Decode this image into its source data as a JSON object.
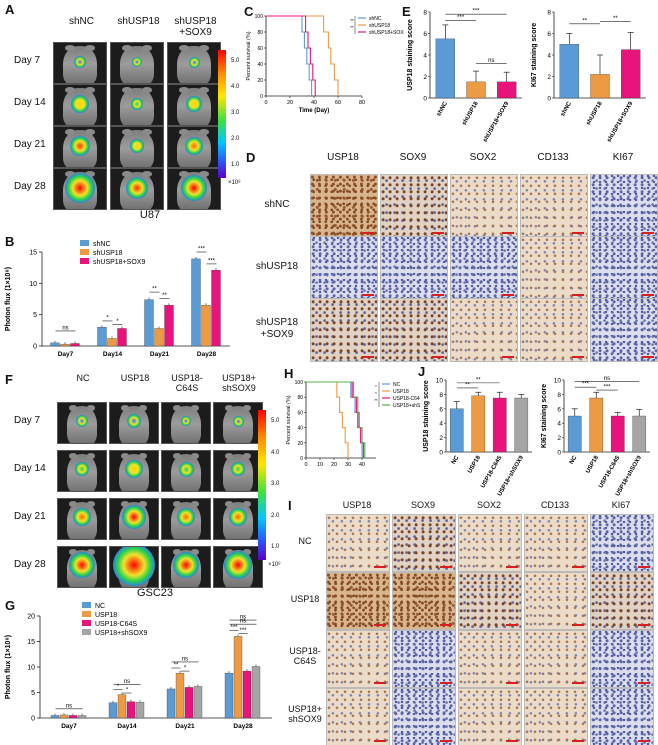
{
  "panel_letters": {
    "A": "A",
    "B": "B",
    "C": "C",
    "D": "D",
    "E": "E",
    "F": "F",
    "G": "G",
    "H": "H",
    "I": "I",
    "J": "J"
  },
  "panelA": {
    "columns": [
      "shNC",
      "shUSP18",
      "shUSP18\n+SOX9"
    ],
    "rows": [
      "Day 7",
      "Day 14",
      "Day 21",
      "Day 28"
    ],
    "cell_line": "U87",
    "colorbar_ticks": [
      "5.0",
      "4.0",
      "3.0",
      "2.0",
      "1.0"
    ],
    "colorbar_unit": "×10⁸"
  },
  "panelF": {
    "columns": [
      "NC",
      "USP18",
      "USP18-\nC64S",
      "USP18+\nshSOX9"
    ],
    "rows": [
      "Day 7",
      "Day 14",
      "Day 21",
      "Day 28"
    ],
    "cell_line": "GSC23",
    "colorbar_ticks": [
      "5.0",
      "4.0",
      "3.0",
      "2.0",
      "1.0"
    ],
    "colorbar_unit": "×10⁸"
  },
  "panelD": {
    "columns": [
      "USP18",
      "SOX9",
      "SOX2",
      "CD133",
      "KI67"
    ],
    "rows": [
      "shNC",
      "shUSP18",
      "shUSP18\n+SOX9"
    ]
  },
  "panelI": {
    "columns": [
      "USP18",
      "SOX9",
      "SOX2",
      "CD133",
      "KI67"
    ],
    "rows": [
      "NC",
      "USP18",
      "USP18-\nC64S",
      "USP18+\nshSOX9"
    ]
  },
  "colors": {
    "blue": "#5b9bd5",
    "orange": "#ed9a45",
    "magenta": "#e8147c",
    "gray": "#a5a5a5",
    "brown_tissue": "#b07a4a",
    "blue_tissue": "#6f78b3"
  },
  "chart_data": [
    {
      "id": "B",
      "type": "bar",
      "ylabel": "Photon flux (1×10⁸)",
      "categories": [
        "Day7",
        "Day14",
        "Day21",
        "Day28"
      ],
      "ylim": [
        0,
        15
      ],
      "yticks": [
        "0",
        "5",
        "10",
        "15"
      ],
      "series": [
        {
          "name": "shNC",
          "color": "#5b9bd5",
          "values": [
            0.5,
            3.0,
            7.4,
            13.9
          ]
        },
        {
          "name": "shUSP18",
          "color": "#ed9a45",
          "values": [
            0.3,
            1.2,
            2.8,
            6.5
          ]
        },
        {
          "name": "shUSP18+SOX9",
          "color": "#e8147c",
          "values": [
            0.4,
            2.8,
            6.5,
            12.1
          ]
        }
      ],
      "annotations": [
        "ns",
        "*",
        "*",
        "**",
        "**",
        "***",
        "***"
      ]
    },
    {
      "id": "G",
      "type": "bar",
      "ylabel": "Photon flux (1×10⁸)",
      "categories": [
        "Day7",
        "Day14",
        "Day21",
        "Day28"
      ],
      "ylim": [
        0,
        20
      ],
      "yticks": [
        "0",
        "5",
        "10",
        "15",
        "20"
      ],
      "series": [
        {
          "name": "NC",
          "color": "#5b9bd5",
          "values": [
            0.5,
            3.0,
            5.7,
            8.8
          ]
        },
        {
          "name": "USP18",
          "color": "#ed9a45",
          "values": [
            0.6,
            4.6,
            8.8,
            16.0
          ]
        },
        {
          "name": "USP18-C64S",
          "color": "#e8147c",
          "values": [
            0.5,
            3.2,
            6.0,
            9.2
          ]
        },
        {
          "name": "USP18+shSOX9",
          "color": "#a5a5a5",
          "values": [
            0.5,
            3.1,
            6.2,
            10.1
          ]
        }
      ],
      "annotations": [
        "ns",
        "ns",
        "*",
        "*",
        "ns",
        "**",
        "*",
        "ns",
        "ns",
        "***",
        "***"
      ]
    },
    {
      "id": "C",
      "type": "line",
      "xlabel": "Time (Day)",
      "ylabel": "Percent survival (%)",
      "xlim": [
        0,
        80
      ],
      "ylim": [
        0,
        100
      ],
      "xticks": [
        "0",
        "20",
        "40",
        "60",
        "80"
      ],
      "yticks": [
        "0",
        "20",
        "40",
        "60",
        "80",
        "100"
      ],
      "series": [
        {
          "name": "shNC",
          "color": "#5b9bd5",
          "steps": [
            [
              0,
              100
            ],
            [
              30,
              100
            ],
            [
              30,
              80
            ],
            [
              32,
              80
            ],
            [
              32,
              60
            ],
            [
              34,
              60
            ],
            [
              34,
              40
            ],
            [
              36,
              40
            ],
            [
              36,
              20
            ],
            [
              38,
              20
            ],
            [
              38,
              0
            ]
          ]
        },
        {
          "name": "shUSP18",
          "color": "#ed9a45",
          "steps": [
            [
              0,
              100
            ],
            [
              48,
              100
            ],
            [
              48,
              80
            ],
            [
              52,
              80
            ],
            [
              52,
              60
            ],
            [
              54,
              60
            ],
            [
              54,
              40
            ],
            [
              57,
              40
            ],
            [
              57,
              20
            ],
            [
              60,
              20
            ],
            [
              60,
              0
            ]
          ]
        },
        {
          "name": "shUSP18+SOX9",
          "color": "#e8147c",
          "steps": [
            [
              0,
              100
            ],
            [
              33,
              100
            ],
            [
              33,
              80
            ],
            [
              35,
              80
            ],
            [
              35,
              60
            ],
            [
              37,
              60
            ],
            [
              37,
              40
            ],
            [
              39,
              40
            ],
            [
              39,
              20
            ],
            [
              41,
              20
            ],
            [
              41,
              0
            ]
          ]
        }
      ],
      "annotations": [
        "**",
        "**"
      ]
    },
    {
      "id": "H",
      "type": "line",
      "ylabel": "Percent survival (%)",
      "xlim": [
        0,
        50
      ],
      "ylim": [
        0,
        100
      ],
      "xticks": [
        "0",
        "10",
        "20",
        "30",
        "40"
      ],
      "yticks": [
        "0",
        "20",
        "40",
        "60",
        "80",
        "100"
      ],
      "series": [
        {
          "name": "NC",
          "color": "#5b9bd5",
          "steps": [
            [
              0,
              100
            ],
            [
              32,
              100
            ],
            [
              32,
              80
            ],
            [
              35,
              80
            ],
            [
              35,
              60
            ],
            [
              38,
              60
            ],
            [
              38,
              40
            ],
            [
              40,
              40
            ],
            [
              40,
              0
            ]
          ]
        },
        {
          "name": "USP18",
          "color": "#ed9a45",
          "steps": [
            [
              0,
              100
            ],
            [
              22,
              100
            ],
            [
              22,
              80
            ],
            [
              24,
              80
            ],
            [
              24,
              60
            ],
            [
              26,
              60
            ],
            [
              26,
              40
            ],
            [
              28,
              40
            ],
            [
              28,
              20
            ],
            [
              30,
              20
            ],
            [
              30,
              0
            ]
          ]
        },
        {
          "name": "USP18-C64S",
          "color": "#e8147c",
          "steps": [
            [
              0,
              100
            ],
            [
              33,
              100
            ],
            [
              33,
              80
            ],
            [
              36,
              80
            ],
            [
              36,
              60
            ],
            [
              37,
              60
            ],
            [
              37,
              40
            ],
            [
              39,
              40
            ],
            [
              39,
              20
            ],
            [
              41,
              20
            ],
            [
              41,
              0
            ]
          ]
        },
        {
          "name": "USP18+shSOX9",
          "color": "#55b04a",
          "steps": [
            [
              0,
              100
            ],
            [
              34,
              100
            ],
            [
              34,
              80
            ],
            [
              37,
              80
            ],
            [
              37,
              60
            ],
            [
              38,
              60
            ],
            [
              38,
              40
            ],
            [
              40,
              40
            ],
            [
              40,
              20
            ],
            [
              42,
              20
            ],
            [
              42,
              0
            ]
          ]
        }
      ],
      "annotations": [
        "*",
        "*",
        "**"
      ]
    },
    {
      "id": "E1",
      "type": "bar",
      "ylabel": "USP18 staining score",
      "categories": [
        "shNC",
        "shUSP18",
        "shUSP18+SOX9"
      ],
      "ylim": [
        0,
        8
      ],
      "yticks": [
        "0",
        "2",
        "4",
        "6",
        "8"
      ],
      "values": [
        5.5,
        1.5,
        1.5
      ],
      "errors": [
        1.3,
        1.0,
        0.9
      ],
      "colors": [
        "#5b9bd5",
        "#ed9a45",
        "#e8147c"
      ],
      "annotations": [
        "***",
        "***",
        "ns"
      ]
    },
    {
      "id": "E2",
      "type": "bar",
      "ylabel": "KI67 staining score",
      "categories": [
        "shNC",
        "shUSP18",
        "shUSP18+SOX9"
      ],
      "ylim": [
        0,
        8
      ],
      "yticks": [
        "0",
        "2",
        "4",
        "6",
        "8"
      ],
      "values": [
        5.0,
        2.2,
        4.5
      ],
      "errors": [
        1.0,
        1.8,
        1.6
      ],
      "colors": [
        "#5b9bd5",
        "#ed9a45",
        "#e8147c"
      ],
      "annotations": [
        "**",
        "**"
      ]
    },
    {
      "id": "J1",
      "type": "bar",
      "ylabel": "USP18 staining score",
      "categories": [
        "NC",
        "USP18",
        "USP18-C64S",
        "USP18+shSOX9"
      ],
      "ylim": [
        0,
        10
      ],
      "yticks": [
        "0",
        "2",
        "4",
        "6",
        "8",
        "10"
      ],
      "values": [
        6.0,
        7.8,
        7.5,
        7.5
      ],
      "errors": [
        1.0,
        0.5,
        0.8,
        0.5
      ],
      "colors": [
        "#5b9bd5",
        "#ed9a45",
        "#e8147c",
        "#a5a5a5"
      ],
      "annotations": [
        "**",
        "**"
      ]
    },
    {
      "id": "J2",
      "type": "bar",
      "ylabel": "KI67 staining score",
      "categories": [
        "NC",
        "USP18",
        "USP18-C64S",
        "USP18+shSOX9"
      ],
      "ylim": [
        0,
        10
      ],
      "yticks": [
        "0",
        "2",
        "4",
        "6",
        "8",
        "10"
      ],
      "values": [
        5.0,
        7.5,
        5.0,
        5.0
      ],
      "errors": [
        1.0,
        0.8,
        0.5,
        0.9
      ],
      "colors": [
        "#5b9bd5",
        "#ed9a45",
        "#e8147c",
        "#a5a5a5"
      ],
      "annotations": [
        "ns",
        "***",
        "***"
      ]
    }
  ]
}
